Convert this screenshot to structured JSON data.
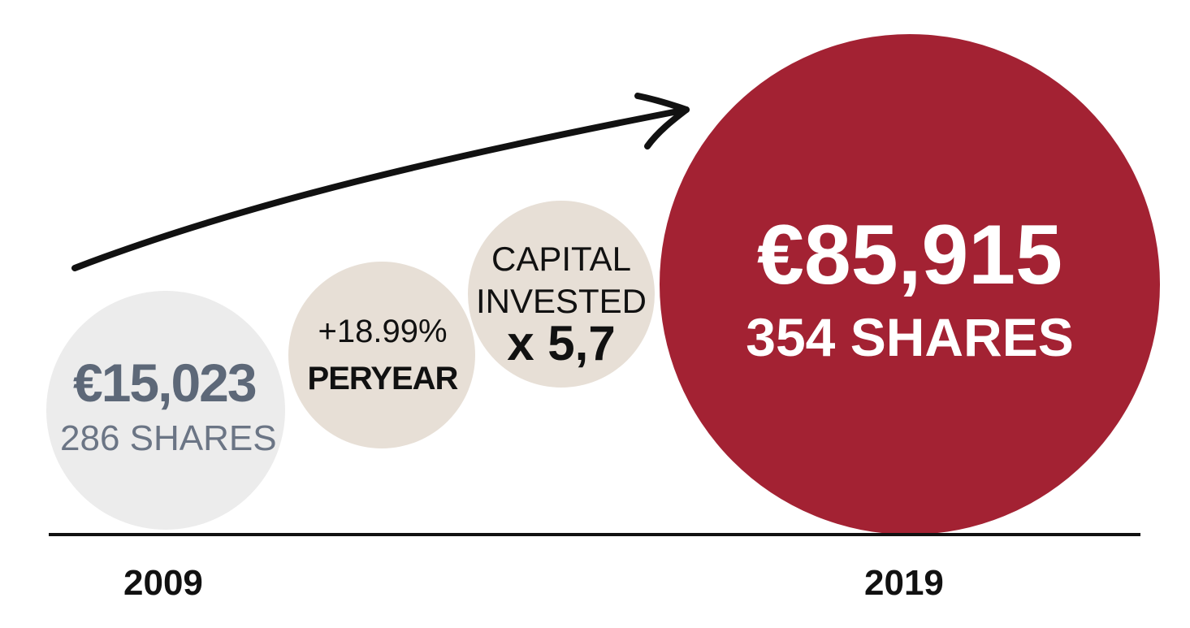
{
  "start": {
    "value": "€15,023",
    "shares": "286 SHARES",
    "year": "2009"
  },
  "growth": {
    "rate": "+18.99%",
    "period": "PERYEAR"
  },
  "capital": {
    "line1": "CAPITAL",
    "line2": "INVESTED",
    "multiplier": "x 5,7"
  },
  "end": {
    "value": "€85,915",
    "shares": "354 SHARES",
    "year": "2019"
  },
  "colors": {
    "start_circle": "#ececec",
    "middle_circles": "#e7dfd6",
    "end_circle": "#a32233",
    "start_text": "#5d6878"
  },
  "icons": [
    "arrow-icon"
  ]
}
